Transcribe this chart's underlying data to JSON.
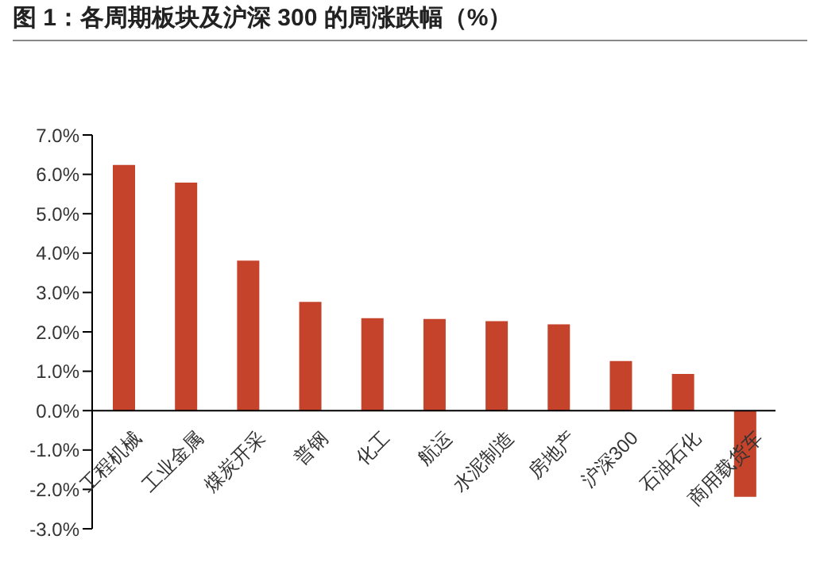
{
  "chart_data": {
    "type": "bar",
    "title": "图 1：各周期板块及沪深 300 的周涨跌幅（%）",
    "categories": [
      "工程机械",
      "工业金属",
      "煤炭开采",
      "普钢",
      "化工",
      "航运",
      "水泥制造",
      "房地产",
      "沪深300",
      "石油石化",
      "商用载货车"
    ],
    "values": [
      6.24,
      5.79,
      3.81,
      2.76,
      2.35,
      2.33,
      2.27,
      2.19,
      1.26,
      0.93,
      -2.19
    ],
    "color": "#c5432a",
    "ylim": [
      -3,
      7
    ],
    "yticks": [
      {
        "value": -3,
        "label": "-3.0%"
      },
      {
        "value": -2,
        "label": "-2.0%"
      },
      {
        "value": -1,
        "label": "-1.0%"
      },
      {
        "value": 0,
        "label": "0.0%"
      },
      {
        "value": 1,
        "label": "1.0%"
      },
      {
        "value": 2,
        "label": "2.0%"
      },
      {
        "value": 3,
        "label": "3.0%"
      },
      {
        "value": 4,
        "label": "4.0%"
      },
      {
        "value": 5,
        "label": "5.0%"
      },
      {
        "value": 6,
        "label": "6.0%"
      },
      {
        "value": 7,
        "label": "7.0%"
      }
    ],
    "grid": false
  }
}
